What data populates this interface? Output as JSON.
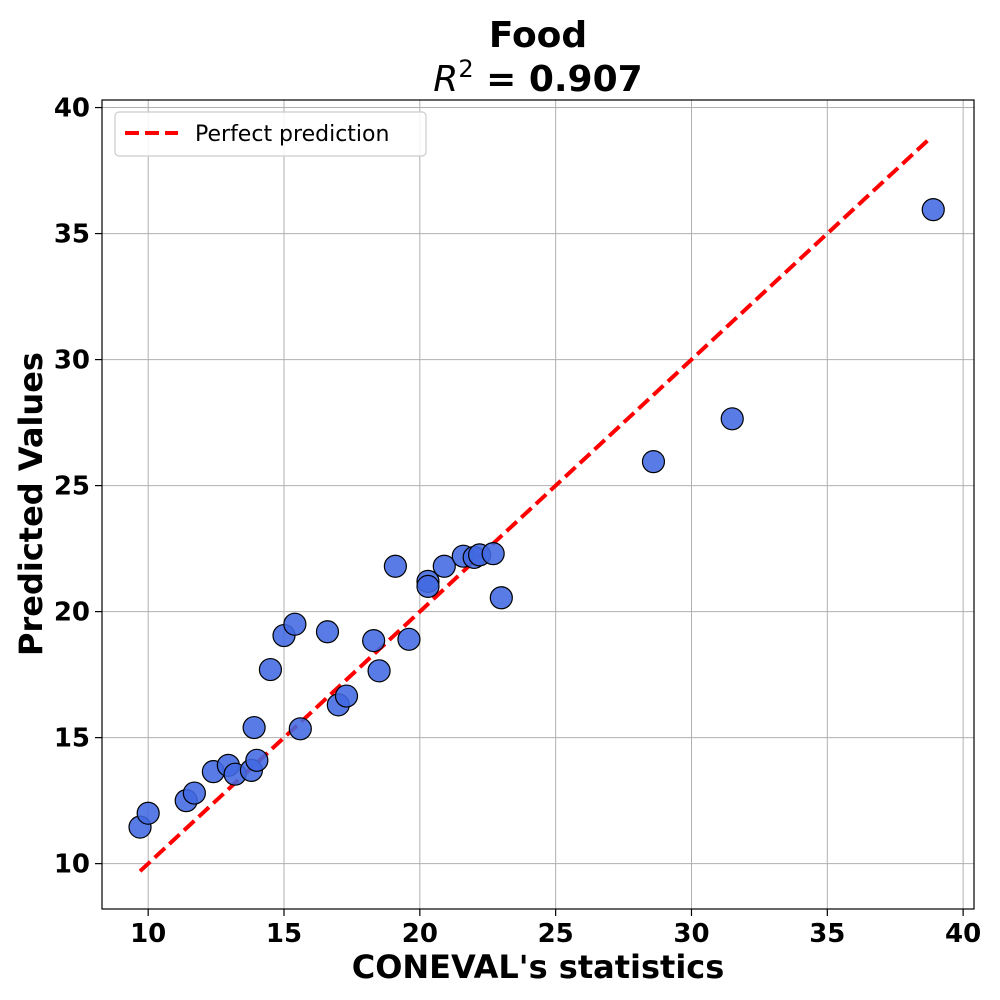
{
  "chart_data": {
    "type": "scatter",
    "title": "Food",
    "subtitle_prefix": "R",
    "subtitle_sup": "2",
    "subtitle_value": " = 0.907",
    "xlabel": "CONEVAL's statistics",
    "ylabel": "Predicted Values",
    "xlim": [
      8.3,
      40.4
    ],
    "ylim": [
      8.2,
      40.3
    ],
    "xticks": [
      10,
      15,
      20,
      25,
      30,
      35,
      40
    ],
    "yticks": [
      10,
      15,
      20,
      25,
      30,
      35,
      40
    ],
    "grid": true,
    "legend": {
      "position": "top-left",
      "entries": [
        "Perfect prediction"
      ]
    },
    "reference_line": {
      "name": "Perfect prediction",
      "x": [
        9.7,
        38.8
      ],
      "y": [
        9.7,
        38.8
      ],
      "color": "#ff0000",
      "style": "dashed"
    },
    "point_color": "#4169e1",
    "series": [
      {
        "points": [
          [
            9.7,
            11.45
          ],
          [
            10.0,
            12.0
          ],
          [
            11.4,
            12.5
          ],
          [
            11.7,
            12.8
          ],
          [
            12.4,
            13.65
          ],
          [
            12.95,
            13.9
          ],
          [
            13.2,
            13.55
          ],
          [
            13.8,
            13.7
          ],
          [
            14.0,
            14.1
          ],
          [
            13.9,
            15.4
          ],
          [
            14.5,
            17.7
          ],
          [
            15.0,
            19.05
          ],
          [
            15.4,
            19.5
          ],
          [
            15.6,
            15.35
          ],
          [
            16.6,
            19.2
          ],
          [
            17.0,
            16.3
          ],
          [
            17.3,
            16.65
          ],
          [
            18.3,
            18.85
          ],
          [
            18.5,
            17.65
          ],
          [
            19.1,
            21.8
          ],
          [
            19.6,
            18.9
          ],
          [
            20.3,
            21.2
          ],
          [
            20.3,
            21.0
          ],
          [
            20.9,
            21.8
          ],
          [
            21.6,
            22.2
          ],
          [
            22.0,
            22.15
          ],
          [
            22.2,
            22.25
          ],
          [
            22.7,
            22.3
          ],
          [
            23.0,
            20.55
          ],
          [
            28.6,
            25.95
          ],
          [
            31.5,
            27.65
          ],
          [
            38.9,
            35.95
          ]
        ]
      }
    ]
  }
}
